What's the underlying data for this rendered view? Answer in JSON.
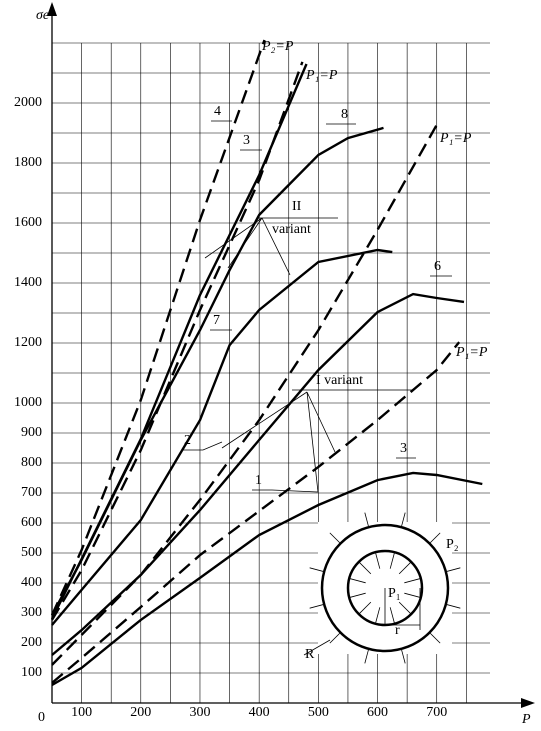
{
  "chart_data": {
    "type": "line",
    "y_label": "σe",
    "x_label": "P",
    "origin_label": "0",
    "xlim": [
      50,
      790
    ],
    "ylim": [
      0,
      2200
    ],
    "xticks": [
      100,
      200,
      300,
      400,
      500,
      600,
      700
    ],
    "yticks": [
      100,
      200,
      300,
      400,
      500,
      600,
      700,
      800,
      900,
      1000,
      1200,
      1400,
      1600,
      1800,
      2000
    ],
    "grid": true,
    "series": [
      {
        "color": "#000000",
        "dash": false,
        "x": [
          50,
          100,
          200,
          300,
          400,
          500,
          600,
          660,
          700,
          777
        ],
        "values": [
          60,
          117,
          277,
          417,
          560,
          660,
          743,
          767,
          760,
          730
        ]
      },
      {
        "color": "#000000",
        "dash": true,
        "x": [
          50,
          100,
          200,
          300,
          400,
          500,
          600,
          700,
          738
        ],
        "values": [
          67,
          150,
          320,
          493,
          640,
          787,
          943,
          1110,
          1203
        ]
      },
      {
        "color": "#000000",
        "dash": false,
        "x": [
          50,
          100,
          200,
          300,
          400,
          500,
          600,
          660,
          700,
          746
        ],
        "values": [
          160,
          243,
          427,
          643,
          877,
          1110,
          1303,
          1363,
          1350,
          1337
        ]
      },
      {
        "color": "#000000",
        "dash": true,
        "x": [
          50,
          100,
          200,
          300,
          400,
          500,
          600,
          700
        ],
        "values": [
          127,
          227,
          427,
          677,
          943,
          1243,
          1577,
          1927
        ]
      },
      {
        "color": "#000000",
        "dash": false,
        "x": [
          50,
          100,
          200,
          300,
          350,
          400,
          500,
          600,
          625
        ],
        "values": [
          260,
          377,
          610,
          943,
          1193,
          1310,
          1470,
          1510,
          1503
        ]
      },
      {
        "color": "#000000",
        "dash": false,
        "x": [
          50,
          100,
          200,
          300,
          350,
          400,
          450,
          500,
          550,
          610
        ],
        "values": [
          293,
          477,
          877,
          1243,
          1443,
          1627,
          1727,
          1827,
          1883,
          1917
        ]
      },
      {
        "color": "#000000",
        "dash": false,
        "x": [
          50,
          100,
          200,
          300,
          400,
          480
        ],
        "values": [
          280,
          480,
          880,
          1360,
          1760,
          2130
        ]
      },
      {
        "color": "#000000",
        "dash": true,
        "x": [
          50,
          100,
          200,
          300,
          400,
          473
        ],
        "values": [
          277,
          443,
          843,
          1310,
          1743,
          2137
        ]
      },
      {
        "color": "#000000",
        "dash": true,
        "x": [
          50,
          100,
          200,
          300,
          409
        ],
        "values": [
          293,
          510,
          1010,
          1610,
          2210
        ]
      }
    ],
    "annotations": [
      "1",
      "2",
      "3",
      "4",
      "3",
      "6",
      "7",
      "8",
      "II",
      "variant",
      "I variant",
      "P₂=P",
      "P₁=P",
      "P₁=P",
      "P₁=P"
    ],
    "inset_labels": [
      "P₂",
      "P₁",
      "r",
      "R"
    ]
  }
}
